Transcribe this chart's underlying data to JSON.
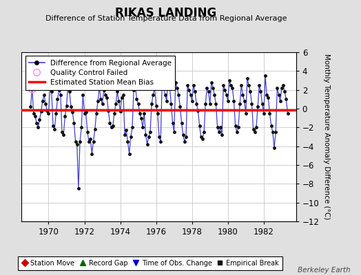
{
  "title": "RIKAS LANDING",
  "subtitle": "Difference of Station Temperature Data from Regional Average",
  "ylabel": "Monthly Temperature Anomaly Difference (°C)",
  "xlim": [
    1968.5,
    1983.8
  ],
  "ylim": [
    -12,
    6
  ],
  "yticks": [
    -12,
    -10,
    -8,
    -6,
    -4,
    -2,
    0,
    2,
    4,
    6
  ],
  "xticks": [
    1970,
    1972,
    1974,
    1976,
    1978,
    1980,
    1982
  ],
  "mean_bias": -0.15,
  "bias_color": "#ff0000",
  "line_color": "#4040cc",
  "marker_color": "#111111",
  "qc_fail_color": "#ff88ff",
  "background_color": "#e0e0e0",
  "plot_bg_color": "#ffffff",
  "grid_color": "#c8c8c8",
  "watermark": "Berkeley Earth",
  "legend1_entries": [
    {
      "label": "Difference from Regional Average"
    },
    {
      "label": "Quality Control Failed"
    },
    {
      "label": "Estimated Station Mean Bias"
    }
  ],
  "legend2_entries": [
    {
      "label": "Station Move",
      "color": "#cc0000",
      "marker": "D"
    },
    {
      "label": "Record Gap",
      "color": "#006600",
      "marker": "^"
    },
    {
      "label": "Time of Obs. Change",
      "color": "#0000cc",
      "marker": "v"
    },
    {
      "label": "Empirical Break",
      "color": "#111111",
      "marker": "s"
    }
  ],
  "data_x": [
    1969.0,
    1969.083,
    1969.167,
    1969.25,
    1969.333,
    1969.417,
    1969.5,
    1969.583,
    1969.667,
    1969.75,
    1969.833,
    1969.917,
    1970.0,
    1970.083,
    1970.167,
    1970.25,
    1970.333,
    1970.417,
    1970.5,
    1970.583,
    1970.667,
    1970.75,
    1970.833,
    1970.917,
    1971.0,
    1971.083,
    1971.167,
    1971.25,
    1971.333,
    1971.417,
    1971.5,
    1971.583,
    1971.667,
    1971.75,
    1971.833,
    1971.917,
    1972.0,
    1972.083,
    1972.167,
    1972.25,
    1972.333,
    1972.417,
    1972.5,
    1972.583,
    1972.667,
    1972.75,
    1972.833,
    1972.917,
    1973.0,
    1973.083,
    1973.167,
    1973.25,
    1973.333,
    1973.417,
    1973.5,
    1973.583,
    1973.667,
    1973.75,
    1973.833,
    1973.917,
    1974.0,
    1974.083,
    1974.167,
    1974.25,
    1974.333,
    1974.417,
    1974.5,
    1974.583,
    1974.667,
    1974.75,
    1974.833,
    1974.917,
    1975.0,
    1975.083,
    1975.167,
    1975.25,
    1975.333,
    1975.417,
    1975.5,
    1975.583,
    1975.667,
    1975.75,
    1975.833,
    1975.917,
    1976.0,
    1976.083,
    1976.167,
    1976.25,
    1976.333,
    1976.417,
    1976.5,
    1976.583,
    1976.667,
    1976.75,
    1976.833,
    1976.917,
    1977.0,
    1977.083,
    1977.167,
    1977.25,
    1977.333,
    1977.417,
    1977.5,
    1977.583,
    1977.667,
    1977.75,
    1977.833,
    1977.917,
    1978.0,
    1978.083,
    1978.167,
    1978.25,
    1978.333,
    1978.417,
    1978.5,
    1978.583,
    1978.667,
    1978.75,
    1978.833,
    1978.917,
    1979.0,
    1979.083,
    1979.167,
    1979.25,
    1979.333,
    1979.417,
    1979.5,
    1979.583,
    1979.667,
    1979.75,
    1979.833,
    1979.917,
    1980.0,
    1980.083,
    1980.167,
    1980.25,
    1980.333,
    1980.417,
    1980.5,
    1980.583,
    1980.667,
    1980.75,
    1980.833,
    1980.917,
    1981.0,
    1981.083,
    1981.167,
    1981.25,
    1981.333,
    1981.417,
    1981.5,
    1981.583,
    1981.667,
    1981.75,
    1981.833,
    1981.917,
    1982.0,
    1982.083,
    1982.167,
    1982.25,
    1982.333,
    1982.417,
    1982.5,
    1982.583,
    1982.667,
    1982.75,
    1982.833,
    1982.917,
    1983.0,
    1983.083,
    1983.167,
    1983.25,
    1983.333
  ],
  "data_y": [
    0.2,
    2.1,
    -0.5,
    -0.8,
    -1.5,
    -2.0,
    -1.2,
    -0.3,
    0.8,
    1.5,
    0.5,
    -0.2,
    -0.5,
    2.2,
    1.8,
    -1.8,
    -2.2,
    -0.5,
    1.0,
    2.0,
    1.5,
    -2.5,
    -2.8,
    -0.8,
    0.3,
    2.5,
    1.8,
    0.2,
    -0.4,
    -1.5,
    -3.5,
    -3.8,
    -8.5,
    -3.5,
    -2.0,
    1.5,
    -0.5,
    -0.4,
    -2.5,
    -3.5,
    -3.2,
    -4.8,
    -3.5,
    -2.2,
    -0.5,
    0.8,
    2.3,
    1.0,
    0.5,
    2.0,
    1.5,
    1.2,
    -0.2,
    -1.5,
    -2.0,
    -1.8,
    -0.5,
    0.5,
    1.8,
    0.8,
    -0.3,
    1.2,
    1.5,
    -2.8,
    -2.3,
    -3.5,
    -4.8,
    -3.0,
    -2.0,
    2.0,
    2.5,
    1.0,
    0.5,
    -0.5,
    -1.0,
    -2.0,
    -0.5,
    -2.8,
    -3.8,
    -3.0,
    -2.5,
    0.5,
    1.5,
    2.2,
    0.3,
    -0.5,
    -3.0,
    -3.5,
    3.0,
    2.2,
    1.5,
    0.8,
    3.5,
    2.5,
    0.5,
    -1.5,
    -2.5,
    2.8,
    2.2,
    1.5,
    0.2,
    -1.5,
    -2.8,
    -3.5,
    -3.0,
    2.5,
    2.0,
    1.5,
    0.8,
    2.5,
    1.8,
    0.5,
    -0.2,
    -1.8,
    -3.0,
    -3.2,
    -2.5,
    0.5,
    2.2,
    1.8,
    0.5,
    2.8,
    2.2,
    1.5,
    0.5,
    -2.0,
    -2.5,
    -2.0,
    -2.8,
    2.5,
    2.0,
    1.5,
    0.8,
    3.0,
    2.5,
    2.2,
    0.8,
    -1.8,
    -2.5,
    -2.0,
    0.5,
    2.5,
    1.5,
    0.8,
    -0.5,
    3.2,
    2.5,
    1.8,
    0.5,
    -2.2,
    -2.5,
    -2.0,
    0.2,
    2.5,
    1.8,
    0.5,
    -0.5,
    3.5,
    1.5,
    1.2,
    -0.5,
    -1.8,
    -2.5,
    -4.2,
    -2.5,
    2.2,
    1.5,
    0.8,
    2.2,
    2.5,
    1.8,
    1.0,
    -0.5
  ],
  "qc_fail_x": [
    1969.083
  ],
  "qc_fail_y": [
    2.1
  ]
}
